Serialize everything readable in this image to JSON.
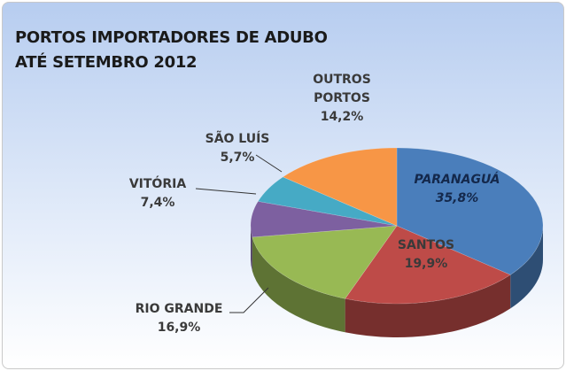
{
  "chart_data": {
    "type": "pie",
    "title": [
      "PORTOS IMPORTADORES DE ADUBO",
      "ATÉ SETEMBRO 2012"
    ],
    "categories": [
      "PARANAGUÁ",
      "SANTOS",
      "RIO GRANDE",
      "VITÓRIA",
      "SÃO LUÍS",
      "OUTROS PORTOS"
    ],
    "values": [
      35.8,
      19.9,
      16.9,
      7.4,
      5.7,
      14.2
    ],
    "value_labels": [
      "35,8%",
      "19,9%",
      "16,9%",
      "7,4%",
      "5,7%",
      "14,2%"
    ],
    "colors": [
      "#4a7ebb",
      "#be4b48",
      "#98b954",
      "#7d60a0",
      "#46aac5",
      "#f79646"
    ]
  }
}
